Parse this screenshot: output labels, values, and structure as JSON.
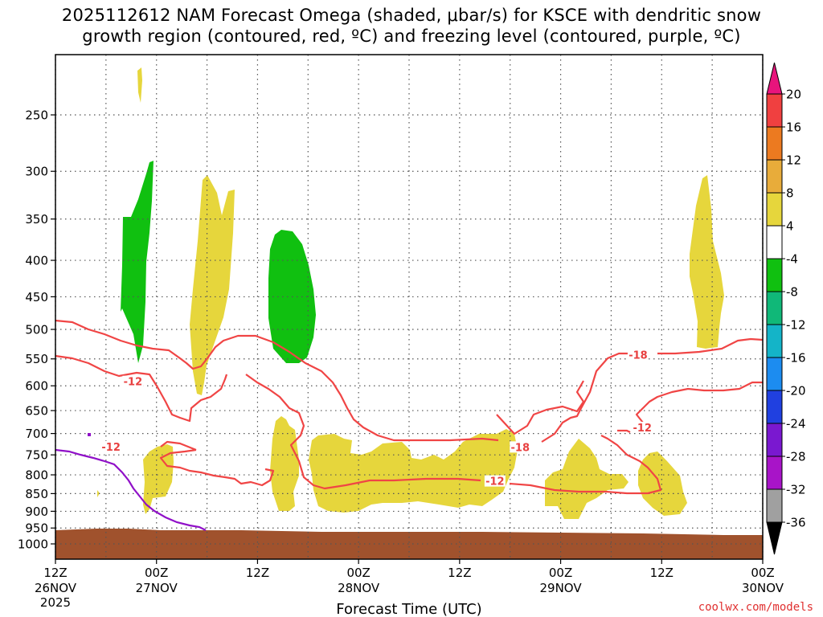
{
  "title": {
    "line1": "2025112612 NAM Forecast Omega (shaded, μbar/s) for KSCE with dendritic snow",
    "line2": "growth region (contoured, red, ºC) and freezing level (contoured, purple, ºC)"
  },
  "credit": "coolwx.com/models",
  "chart_data": {
    "type": "time-height",
    "xlabel": "Forecast Time (UTC)",
    "ylabel": "",
    "x_ticks": [
      {
        "hours": 0,
        "line1": "12Z",
        "line2": "26NOV",
        "line3": "2025"
      },
      {
        "hours": 12,
        "line1": "00Z",
        "line2": "27NOV"
      },
      {
        "hours": 24,
        "line1": "12Z",
        "line2": ""
      },
      {
        "hours": 36,
        "line1": "00Z",
        "line2": "28NOV"
      },
      {
        "hours": 48,
        "line1": "12Z",
        "line2": ""
      },
      {
        "hours": 60,
        "line1": "00Z",
        "line2": "29NOV"
      },
      {
        "hours": 72,
        "line1": "12Z",
        "line2": ""
      },
      {
        "hours": 84,
        "line1": "00Z",
        "line2": "30NOV"
      }
    ],
    "xlim_hours": [
      0,
      84
    ],
    "y_ticks": [
      250,
      300,
      350,
      400,
      450,
      500,
      550,
      600,
      650,
      700,
      750,
      800,
      850,
      900,
      950,
      1000
    ],
    "ylim_mb": [
      200,
      1020
    ],
    "y_scale": "log-pressure",
    "grid": true,
    "colorbar": {
      "labels": [
        "20",
        "16",
        "12",
        "8",
        "4",
        "-4",
        "-8",
        "-12",
        "-16",
        "-20",
        "-24",
        "-28",
        "-32",
        "-36"
      ],
      "colors": [
        "#e8147c",
        "#f04040",
        "#ec7a20",
        "#e8ac3a",
        "#e6d63c",
        "#ffffff",
        "#10c010",
        "#10b878",
        "#14b4c8",
        "#1c8cf0",
        "#2040e0",
        "#7a18d0",
        "#a814c8",
        "#a0a0a0",
        "#000000"
      ]
    },
    "terrain": {
      "color": "#a0522d",
      "top_mb": 965
    },
    "omega_shading": [
      {
        "value_range": "4 to 8",
        "color": "#e6d63c",
        "desc": "upward/downward motion band"
      },
      {
        "value_range": "-4 to -8",
        "color": "#10c010"
      }
    ],
    "contour_labels": [
      {
        "text": "-12",
        "hours": 9.2,
        "mb": 593,
        "color": "#e84040"
      },
      {
        "text": "-12",
        "hours": 6.6,
        "mb": 732,
        "color": "#e84040"
      },
      {
        "text": "-18",
        "hours": 69.2,
        "mb": 544,
        "color": "#e84040"
      },
      {
        "text": "-18",
        "hours": 55.2,
        "mb": 733,
        "color": "#e84040"
      },
      {
        "text": "-12",
        "hours": 52.2,
        "mb": 818,
        "color": "#e84040"
      },
      {
        "text": "-12",
        "hours": 69.7,
        "mb": 688,
        "color": "#e84040"
      }
    ],
    "freezing_level_color": "#9010c8",
    "dgz_color": "#f04545"
  }
}
